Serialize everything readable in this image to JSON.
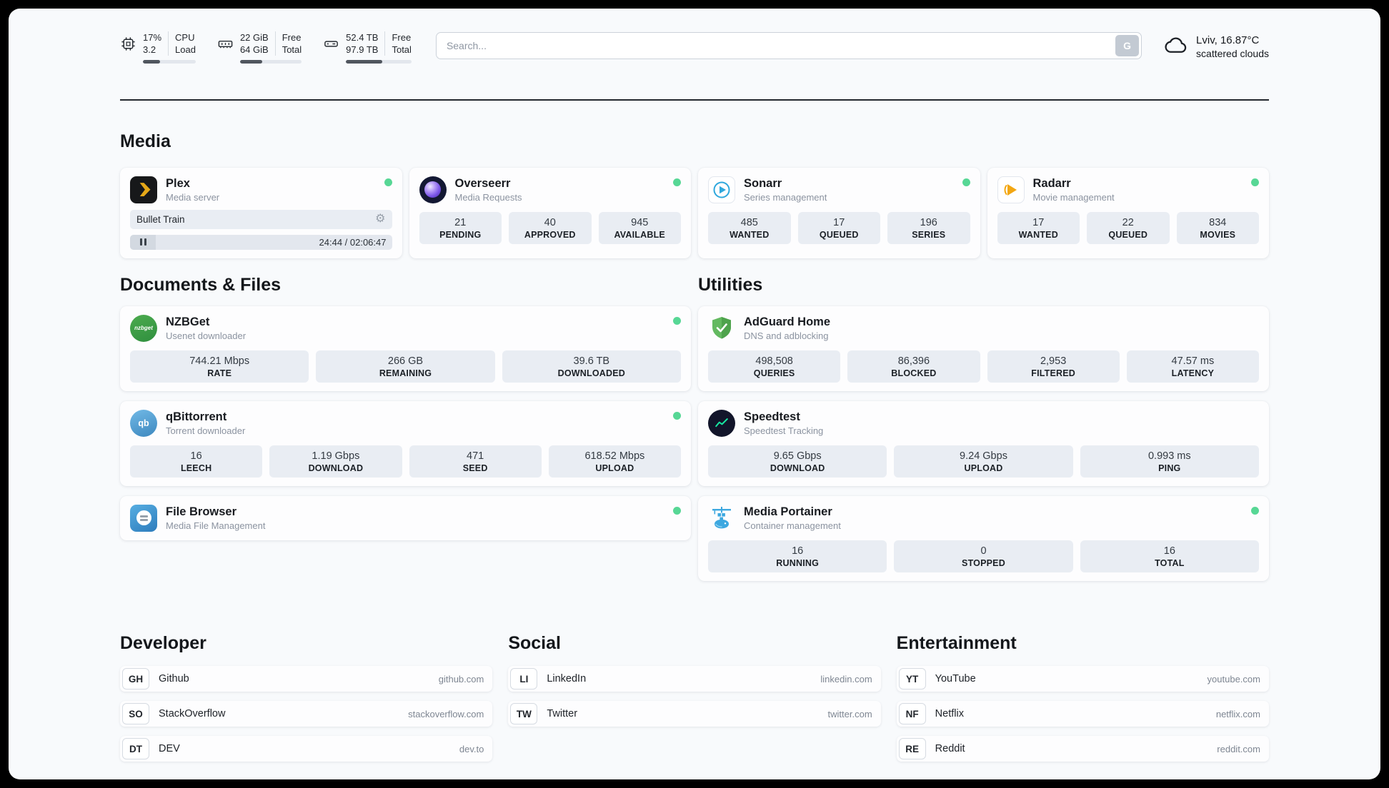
{
  "header": {
    "cpu": {
      "values": [
        "17%",
        "3.2"
      ],
      "labels": [
        "CPU",
        "Load"
      ],
      "progress_pct": 33
    },
    "memory": {
      "values": [
        "22 GiB",
        "64 GiB"
      ],
      "labels": [
        "Free",
        "Total"
      ],
      "progress_pct": 36
    },
    "disk": {
      "values": [
        "52.4 TB",
        "97.9 TB"
      ],
      "labels": [
        "Free",
        "Total"
      ],
      "progress_pct": 55
    },
    "search": {
      "placeholder": "Search...",
      "engine_button": "G"
    },
    "weather": {
      "location": "Lviv, 16.87°C",
      "condition": "scattered clouds"
    }
  },
  "icons": {
    "settings_gear": "⚙"
  },
  "colors": {
    "status_online": "#57d795",
    "accent_green": "#4ea34c",
    "portainer_blue": "#3da8e0"
  },
  "sections": {
    "media": {
      "title": "Media"
    },
    "documents": {
      "title": "Documents & Files"
    },
    "utilities": {
      "title": "Utilities"
    },
    "developer": {
      "title": "Developer"
    },
    "social": {
      "title": "Social"
    },
    "entertainment": {
      "title": "Entertainment"
    }
  },
  "apps": {
    "plex": {
      "name": "Plex",
      "subtitle": "Media server",
      "now_playing": {
        "title": "Bullet Train",
        "time": "24:44 / 02:06:47"
      }
    },
    "overseerr": {
      "name": "Overseerr",
      "subtitle": "Media Requests",
      "stats": [
        {
          "value": "21",
          "label": "PENDING"
        },
        {
          "value": "40",
          "label": "APPROVED"
        },
        {
          "value": "945",
          "label": "AVAILABLE"
        }
      ]
    },
    "sonarr": {
      "name": "Sonarr",
      "subtitle": "Series management",
      "stats": [
        {
          "value": "485",
          "label": "WANTED"
        },
        {
          "value": "17",
          "label": "QUEUED"
        },
        {
          "value": "196",
          "label": "SERIES"
        }
      ]
    },
    "radarr": {
      "name": "Radarr",
      "subtitle": "Movie management",
      "stats": [
        {
          "value": "17",
          "label": "WANTED"
        },
        {
          "value": "22",
          "label": "QUEUED"
        },
        {
          "value": "834",
          "label": "MOVIES"
        }
      ]
    },
    "nzbget": {
      "name": "NZBGet",
      "subtitle": "Usenet downloader",
      "icon_text": "nzbget",
      "stats": [
        {
          "value": "744.21 Mbps",
          "label": "RATE"
        },
        {
          "value": "266 GB",
          "label": "REMAINING"
        },
        {
          "value": "39.6 TB",
          "label": "DOWNLOADED"
        }
      ]
    },
    "qbittorrent": {
      "name": "qBittorrent",
      "subtitle": "Torrent downloader",
      "icon_text": "qb",
      "stats": [
        {
          "value": "16",
          "label": "LEECH"
        },
        {
          "value": "1.19 Gbps",
          "label": "DOWNLOAD"
        },
        {
          "value": "471",
          "label": "SEED"
        },
        {
          "value": "618.52 Mbps",
          "label": "UPLOAD"
        }
      ]
    },
    "filebrowser": {
      "name": "File Browser",
      "subtitle": "Media File Management"
    },
    "adguard": {
      "name": "AdGuard Home",
      "subtitle": "DNS and adblocking",
      "stats": [
        {
          "value": "498,508",
          "label": "QUERIES"
        },
        {
          "value": "86,396",
          "label": "BLOCKED"
        },
        {
          "value": "2,953",
          "label": "FILTERED"
        },
        {
          "value": "47.57 ms",
          "label": "LATENCY"
        }
      ]
    },
    "speedtest": {
      "name": "Speedtest",
      "subtitle": "Speedtest Tracking",
      "stats": [
        {
          "value": "9.65 Gbps",
          "label": "DOWNLOAD"
        },
        {
          "value": "9.24 Gbps",
          "label": "UPLOAD"
        },
        {
          "value": "0.993 ms",
          "label": "PING"
        }
      ]
    },
    "portainer": {
      "name": "Media Portainer",
      "subtitle": "Container management",
      "stats": [
        {
          "value": "16",
          "label": "RUNNING"
        },
        {
          "value": "0",
          "label": "STOPPED"
        },
        {
          "value": "16",
          "label": "TOTAL"
        }
      ]
    }
  },
  "bookmarks": {
    "developer": [
      {
        "monogram": "GH",
        "name": "Github",
        "url": "github.com"
      },
      {
        "monogram": "SO",
        "name": "StackOverflow",
        "url": "stackoverflow.com"
      },
      {
        "monogram": "DT",
        "name": "DEV",
        "url": "dev.to"
      }
    ],
    "social": [
      {
        "monogram": "LI",
        "name": "LinkedIn",
        "url": "linkedin.com"
      },
      {
        "monogram": "TW",
        "name": "Twitter",
        "url": "twitter.com"
      }
    ],
    "entertainment": [
      {
        "monogram": "YT",
        "name": "YouTube",
        "url": "youtube.com"
      },
      {
        "monogram": "NF",
        "name": "Netflix",
        "url": "netflix.com"
      },
      {
        "monogram": "RE",
        "name": "Reddit",
        "url": "reddit.com"
      }
    ]
  }
}
